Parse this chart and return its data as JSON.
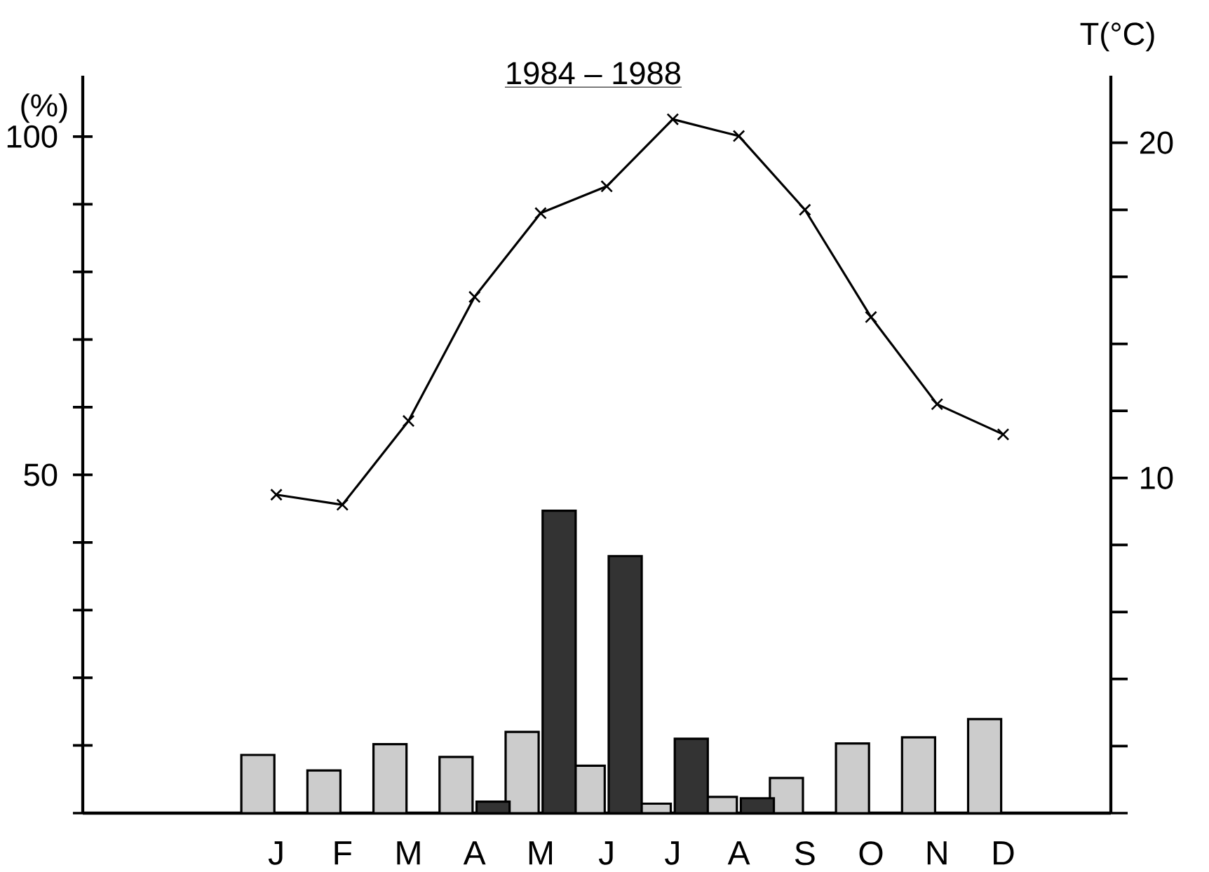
{
  "chart_data": {
    "type": "bar",
    "title": "1984 – 1988",
    "ylabel": "(%)",
    "y2label": "T(°C)",
    "categories": [
      "J",
      "F",
      "M",
      "A",
      "M",
      "J",
      "J",
      "A",
      "S",
      "O",
      "N",
      "D"
    ],
    "ylim": [
      0,
      109
    ],
    "yticks": [
      50,
      100
    ],
    "y2lim": [
      0,
      22
    ],
    "y2ticks": [
      10,
      20
    ],
    "marker": "cross",
    "series": [
      {
        "color": "#cccccc",
        "values": [
          8.6,
          6.3,
          10.2,
          8.3,
          12.0,
          7.0,
          1.4,
          2.4,
          5.2,
          10.3,
          11.2,
          13.9
        ]
      },
      {
        "color": "#333333",
        "values": [
          null,
          null,
          null,
          1.7,
          44.7,
          38.0,
          11.0,
          2.2,
          null,
          null,
          null,
          null
        ]
      },
      {
        "type": "line",
        "axis": "y2",
        "color": "#000000",
        "values": [
          9.5,
          9.2,
          11.7,
          15.4,
          17.9,
          18.7,
          20.7,
          20.2,
          18.0,
          14.8,
          12.2,
          11.3
        ]
      }
    ]
  }
}
